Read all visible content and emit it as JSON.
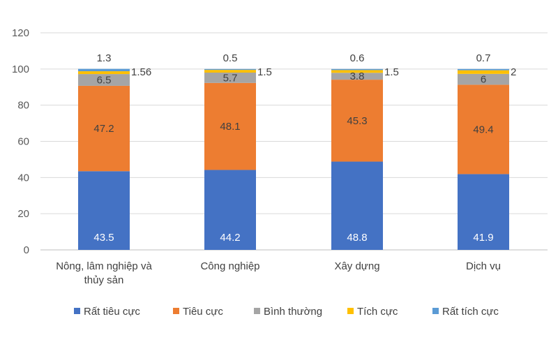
{
  "chart_data": {
    "type": "bar",
    "stacked": true,
    "categories": [
      "Nông, lâm nghiệp và thủy sản",
      "Công nghiệp",
      "Xây dựng",
      "Dịch vụ"
    ],
    "series": [
      {
        "name": "Rất tiêu cực",
        "color": "#4472C4",
        "values": [
          43.5,
          44.2,
          48.8,
          41.9
        ],
        "labels": [
          "43.5",
          "44.2",
          "48.8",
          "41.9"
        ]
      },
      {
        "name": "Tiêu cực",
        "color": "#ED7D31",
        "values": [
          47.2,
          48.1,
          45.3,
          49.4
        ],
        "labels": [
          "47.2",
          "48.1",
          "45.3",
          "49.4"
        ]
      },
      {
        "name": "Bình thường",
        "color": "#A5A5A5",
        "values": [
          6.5,
          5.7,
          3.8,
          6
        ],
        "labels": [
          "6.5",
          "5.7",
          "3.8",
          "6"
        ]
      },
      {
        "name": "Tích cực",
        "color": "#FFC000",
        "values": [
          1.56,
          1.5,
          1.5,
          2
        ],
        "labels": [
          "1.56",
          "1.5",
          "1.5",
          "2"
        ]
      },
      {
        "name": "Rất tích cực",
        "color": "#5B9BD5",
        "values": [
          1.3,
          0.5,
          0.6,
          0.7
        ],
        "labels": [
          "1.3",
          "0.5",
          "0.6",
          "0.7"
        ]
      }
    ],
    "ylim": [
      0,
      120
    ],
    "yticks": [
      "0",
      "20",
      "40",
      "60",
      "80",
      "100",
      "120"
    ],
    "grid": true,
    "legend": "bottom"
  }
}
